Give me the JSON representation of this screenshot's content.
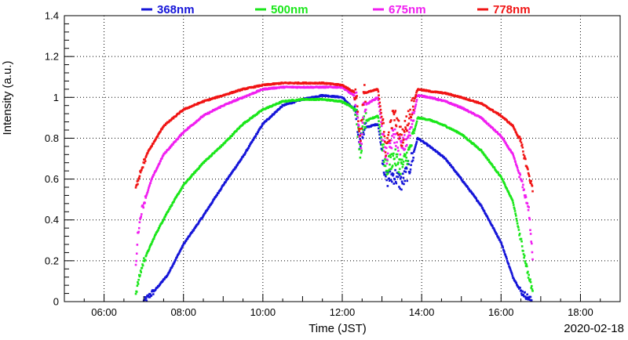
{
  "chart_data": {
    "type": "scatter",
    "xlabel": "Time (JST)",
    "ylabel": "Intensity (a.u.)",
    "date_label": "2020-02-18",
    "xlim": [
      5.0,
      19.0
    ],
    "ylim": [
      0,
      1.4
    ],
    "x_ticks": [
      6,
      8,
      10,
      12,
      14,
      16,
      18
    ],
    "x_tick_labels": [
      "06:00",
      "08:00",
      "10:00",
      "12:00",
      "14:00",
      "16:00",
      "18:00"
    ],
    "y_ticks": [
      0,
      0.2,
      0.4,
      0.6,
      0.8,
      1,
      1.2,
      1.4
    ],
    "y_tick_labels": [
      "0",
      "0.2",
      "0.4",
      "0.6",
      "0.8",
      "1",
      "1.2",
      "1.4"
    ],
    "grid": true,
    "legend_position": "top",
    "series": [
      {
        "name": "368nm",
        "color": "#1515d8",
        "points": [
          [
            7.0,
            0.0
          ],
          [
            7.3,
            0.06
          ],
          [
            7.6,
            0.13
          ],
          [
            8.0,
            0.28
          ],
          [
            8.5,
            0.42
          ],
          [
            9.0,
            0.57
          ],
          [
            9.5,
            0.71
          ],
          [
            10.0,
            0.87
          ],
          [
            10.5,
            0.96
          ],
          [
            11.0,
            0.99
          ],
          [
            11.5,
            1.01
          ],
          [
            12.0,
            1.0
          ],
          [
            12.35,
            0.93
          ],
          [
            12.45,
            0.77
          ],
          [
            12.55,
            0.85
          ],
          [
            12.9,
            0.87
          ],
          [
            13.1,
            0.6
          ],
          [
            13.3,
            0.62
          ],
          [
            13.5,
            0.58
          ],
          [
            13.7,
            0.66
          ],
          [
            13.9,
            0.8
          ],
          [
            14.2,
            0.76
          ],
          [
            14.6,
            0.7
          ],
          [
            15.0,
            0.6
          ],
          [
            15.5,
            0.47
          ],
          [
            16.0,
            0.29
          ],
          [
            16.3,
            0.12
          ],
          [
            16.5,
            0.05
          ],
          [
            16.8,
            0.0
          ]
        ]
      },
      {
        "name": "500nm",
        "color": "#1ae61a",
        "points": [
          [
            6.8,
            0.04
          ],
          [
            6.9,
            0.13
          ],
          [
            7.0,
            0.2
          ],
          [
            7.3,
            0.33
          ],
          [
            7.6,
            0.44
          ],
          [
            8.0,
            0.57
          ],
          [
            8.5,
            0.68
          ],
          [
            9.0,
            0.77
          ],
          [
            9.5,
            0.87
          ],
          [
            10.0,
            0.94
          ],
          [
            10.5,
            0.98
          ],
          [
            11.0,
            0.99
          ],
          [
            11.5,
            0.99
          ],
          [
            12.0,
            0.98
          ],
          [
            12.35,
            0.94
          ],
          [
            12.45,
            0.72
          ],
          [
            12.55,
            0.88
          ],
          [
            12.9,
            0.91
          ],
          [
            13.1,
            0.65
          ],
          [
            13.3,
            0.71
          ],
          [
            13.5,
            0.66
          ],
          [
            13.7,
            0.74
          ],
          [
            13.9,
            0.9
          ],
          [
            14.2,
            0.89
          ],
          [
            14.6,
            0.86
          ],
          [
            15.0,
            0.82
          ],
          [
            15.5,
            0.74
          ],
          [
            16.0,
            0.61
          ],
          [
            16.3,
            0.49
          ],
          [
            16.5,
            0.3
          ],
          [
            16.7,
            0.12
          ],
          [
            16.8,
            0.05
          ]
        ]
      },
      {
        "name": "675nm",
        "color": "#f01ef0",
        "points": [
          [
            6.8,
            0.17
          ],
          [
            6.85,
            0.33
          ],
          [
            6.95,
            0.45
          ],
          [
            7.2,
            0.6
          ],
          [
            7.5,
            0.72
          ],
          [
            8.0,
            0.83
          ],
          [
            8.5,
            0.91
          ],
          [
            9.0,
            0.96
          ],
          [
            9.5,
            1.0
          ],
          [
            10.0,
            1.04
          ],
          [
            10.5,
            1.05
          ],
          [
            11.0,
            1.05
          ],
          [
            11.5,
            1.05
          ],
          [
            12.0,
            1.05
          ],
          [
            12.35,
            1.0
          ],
          [
            12.45,
            0.73
          ],
          [
            12.55,
            0.96
          ],
          [
            12.9,
            1.0
          ],
          [
            13.1,
            0.7
          ],
          [
            13.3,
            0.82
          ],
          [
            13.5,
            0.75
          ],
          [
            13.7,
            0.82
          ],
          [
            13.9,
            1.01
          ],
          [
            14.2,
            1.0
          ],
          [
            14.6,
            0.98
          ],
          [
            15.0,
            0.95
          ],
          [
            15.5,
            0.9
          ],
          [
            16.0,
            0.81
          ],
          [
            16.3,
            0.72
          ],
          [
            16.5,
            0.6
          ],
          [
            16.7,
            0.45
          ],
          [
            16.8,
            0.2
          ]
        ]
      },
      {
        "name": "778nm",
        "color": "#f01414",
        "points": [
          [
            6.8,
            0.55
          ],
          [
            6.9,
            0.63
          ],
          [
            7.1,
            0.73
          ],
          [
            7.5,
            0.86
          ],
          [
            8.0,
            0.94
          ],
          [
            8.5,
            0.98
          ],
          [
            9.0,
            1.01
          ],
          [
            9.5,
            1.04
          ],
          [
            10.0,
            1.06
          ],
          [
            10.5,
            1.07
          ],
          [
            11.0,
            1.07
          ],
          [
            11.5,
            1.07
          ],
          [
            12.0,
            1.06
          ],
          [
            12.35,
            1.02
          ],
          [
            12.45,
            0.8
          ],
          [
            12.55,
            1.02
          ],
          [
            12.9,
            1.04
          ],
          [
            13.1,
            0.75
          ],
          [
            13.3,
            0.92
          ],
          [
            13.5,
            0.8
          ],
          [
            13.7,
            0.92
          ],
          [
            13.9,
            1.04
          ],
          [
            14.2,
            1.03
          ],
          [
            14.6,
            1.02
          ],
          [
            15.0,
            1.0
          ],
          [
            15.5,
            0.97
          ],
          [
            16.0,
            0.91
          ],
          [
            16.3,
            0.86
          ],
          [
            16.5,
            0.78
          ],
          [
            16.7,
            0.62
          ],
          [
            16.8,
            0.55
          ]
        ]
      }
    ]
  }
}
